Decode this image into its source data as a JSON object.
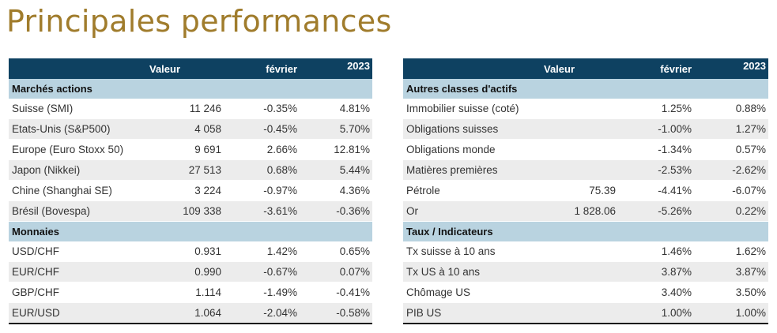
{
  "title": "Principales performances",
  "left_table": {
    "headers": [
      "",
      "Valeur",
      "février",
      "2023"
    ],
    "sections": [
      {
        "title": "Marchés actions",
        "rows": [
          {
            "label": "Suisse (SMI)",
            "value": "11 246",
            "feb": "-0.35%",
            "ytd": "4.81%"
          },
          {
            "label": "Etats-Unis (S&P500)",
            "value": "4 058",
            "feb": "-0.45%",
            "ytd": "5.70%"
          },
          {
            "label": "Europe (Euro Stoxx 50)",
            "value": "9 691",
            "feb": "2.66%",
            "ytd": "12.81%"
          },
          {
            "label": "Japon (Nikkei)",
            "value": "27 513",
            "feb": "0.68%",
            "ytd": "5.44%"
          },
          {
            "label": "Chine (Shanghai SE)",
            "value": "3 224",
            "feb": "-0.97%",
            "ytd": "4.36%"
          },
          {
            "label": "Brésil (Bovespa)",
            "value": "109 338",
            "feb": "-3.61%",
            "ytd": "-0.36%"
          }
        ]
      },
      {
        "title": "Monnaies",
        "rows": [
          {
            "label": "USD/CHF",
            "value": "0.931",
            "feb": "1.42%",
            "ytd": "0.65%"
          },
          {
            "label": "EUR/CHF",
            "value": "0.990",
            "feb": "-0.67%",
            "ytd": "0.07%"
          },
          {
            "label": "GBP/CHF",
            "value": "1.114",
            "feb": "-1.49%",
            "ytd": "-0.41%"
          },
          {
            "label": "EUR/USD",
            "value": "1.064",
            "feb": "-2.04%",
            "ytd": "-0.58%"
          }
        ]
      }
    ]
  },
  "right_table": {
    "headers": [
      "",
      "Valeur",
      "février",
      "2023"
    ],
    "sections": [
      {
        "title": "Autres classes d'actifs",
        "rows": [
          {
            "label": "Immobilier suisse (coté)",
            "value": "",
            "feb": "1.25%",
            "ytd": "0.88%"
          },
          {
            "label": "Obligations suisses",
            "value": "",
            "feb": "-1.00%",
            "ytd": "1.27%"
          },
          {
            "label": "Obligations monde",
            "value": "",
            "feb": "-1.34%",
            "ytd": "0.57%"
          },
          {
            "label": "Matières premières",
            "value": "",
            "feb": "-2.53%",
            "ytd": "-2.62%"
          },
          {
            "label": "Pétrole",
            "value": "75.39",
            "feb": "-4.41%",
            "ytd": "-6.07%"
          },
          {
            "label": "Or",
            "value": "1 828.06",
            "feb": "-5.26%",
            "ytd": "0.22%"
          }
        ]
      },
      {
        "title": "Taux / Indicateurs",
        "rows": [
          {
            "label": "Tx suisse à 10 ans",
            "value": "",
            "feb": "1.46%",
            "ytd": "1.62%"
          },
          {
            "label": "Tx US à 10 ans",
            "value": "",
            "feb": "3.87%",
            "ytd": "3.87%"
          },
          {
            "label": "Chômage US",
            "value": "",
            "feb": "3.40%",
            "ytd": "3.50%"
          },
          {
            "label": "PIB US",
            "value": "",
            "feb": "1.00%",
            "ytd": "1.00%"
          }
        ]
      }
    ]
  }
}
